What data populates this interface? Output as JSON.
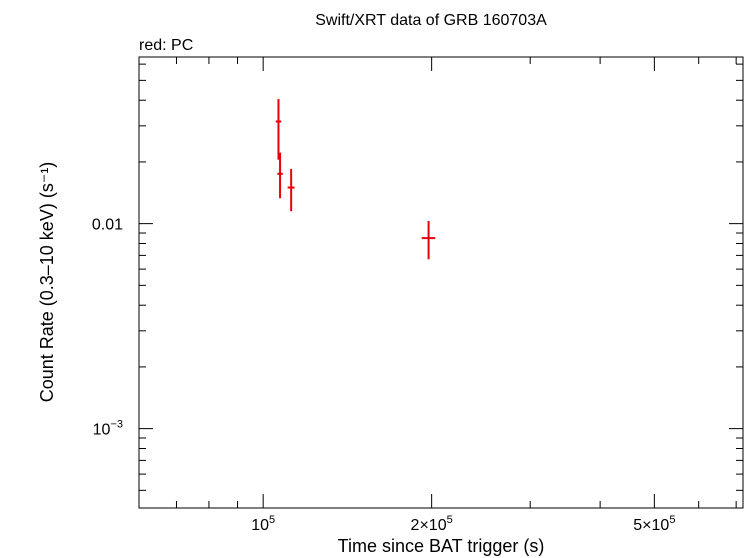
{
  "chart_data": {
    "type": "scatter",
    "title": "Swift/XRT data of GRB 160703A",
    "subtitle": "red: PC",
    "xlabel": "Time since BAT trigger (s)",
    "ylabel": "Count Rate (0.3–10 keV) (s⁻¹)",
    "xscale": "log",
    "yscale": "log",
    "xlim": [
      60000,
      720000
    ],
    "ylim": [
      0.00041,
      0.065
    ],
    "x_ticks": [
      {
        "value": 100000,
        "mantissa": "10",
        "sup": "5"
      },
      {
        "value": 200000,
        "mantissa": "2×10",
        "sup": "5"
      },
      {
        "value": 500000,
        "mantissa": "5×10",
        "sup": "5"
      }
    ],
    "y_ticks": [
      {
        "value": 0.01,
        "mantissa": "0.01",
        "sup": ""
      },
      {
        "value": 0.001,
        "mantissa": "10",
        "sup": "−3"
      }
    ],
    "grid": false,
    "series": [
      {
        "color": "#e8000b",
        "points": [
          {
            "x": 106500,
            "x_lo": 105300,
            "x_hi": 107700,
            "y": 0.0315,
            "y_lo": 0.0205,
            "y_hi": 0.0405
          },
          {
            "x": 107200,
            "x_lo": 106000,
            "x_hi": 108400,
            "y": 0.0175,
            "y_lo": 0.0133,
            "y_hi": 0.0222
          },
          {
            "x": 112200,
            "x_lo": 110600,
            "x_hi": 113800,
            "y": 0.015,
            "y_lo": 0.0115,
            "y_hi": 0.0185
          },
          {
            "x": 197500,
            "x_lo": 192000,
            "x_hi": 203000,
            "y": 0.0085,
            "y_lo": 0.0067,
            "y_hi": 0.0103
          }
        ]
      }
    ]
  }
}
